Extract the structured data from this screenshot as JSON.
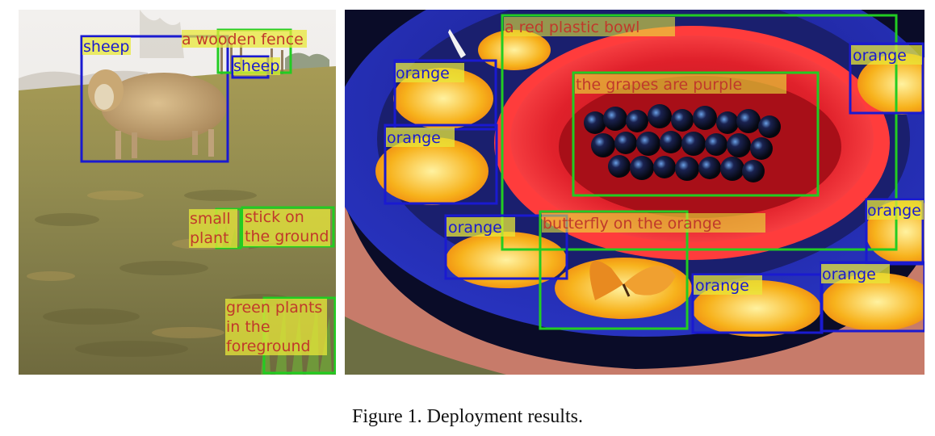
{
  "figure": {
    "caption": "Figure 1. Deployment results.",
    "colors": {
      "object_box": "#1a1ad0",
      "phrase_box": "#22cc22",
      "object_label_text": "#1a1ad0",
      "phrase_label_text": "#c0392b",
      "label_highlight": "#e8e83a"
    },
    "left_panel": {
      "detections": [
        {
          "text": "sheep",
          "kind": "object"
        },
        {
          "text": "a wooden fence",
          "kind": "phrase"
        },
        {
          "text": "sheep",
          "kind": "object"
        },
        {
          "text": "small",
          "kind": "phrase"
        },
        {
          "text": "plant",
          "kind": "phrase"
        },
        {
          "text": "stick on",
          "kind": "phrase"
        },
        {
          "text": "the ground",
          "kind": "phrase"
        },
        {
          "text": "green plants",
          "kind": "phrase"
        },
        {
          "text": "in the",
          "kind": "phrase"
        },
        {
          "text": "foreground",
          "kind": "phrase"
        }
      ]
    },
    "right_panel": {
      "detections": [
        {
          "text": "a red plastic bowl",
          "kind": "phrase"
        },
        {
          "text": "the grapes are purple",
          "kind": "phrase"
        },
        {
          "text": "orange",
          "kind": "object"
        },
        {
          "text": "orange",
          "kind": "object"
        },
        {
          "text": "orange",
          "kind": "object"
        },
        {
          "text": "orange",
          "kind": "object"
        },
        {
          "text": "orange",
          "kind": "object"
        },
        {
          "text": "butterfly on the orange",
          "kind": "phrase"
        },
        {
          "text": "orange",
          "kind": "object"
        },
        {
          "text": "orange",
          "kind": "object"
        }
      ]
    }
  }
}
